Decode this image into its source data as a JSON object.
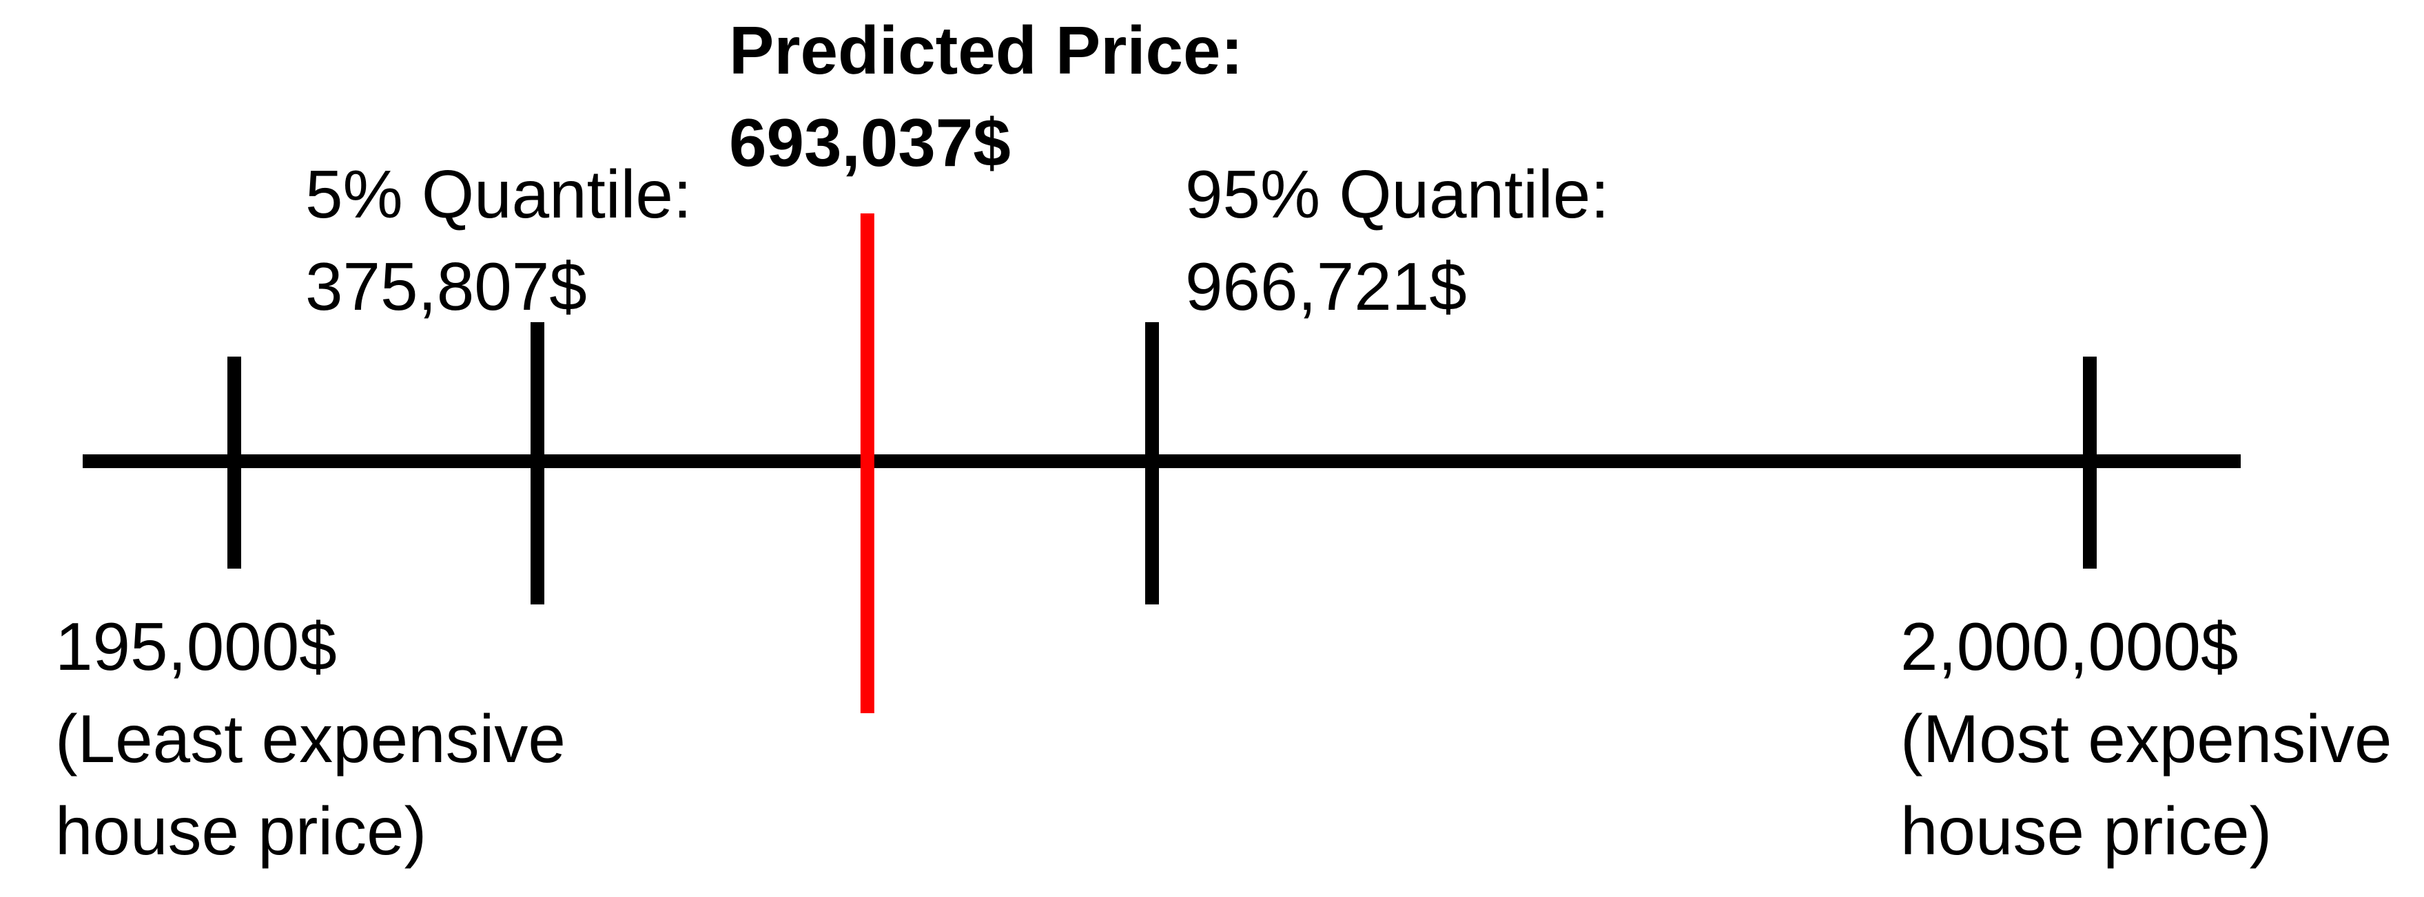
{
  "colors": {
    "axis": "#000000",
    "predicted_marker": "#ff0000"
  },
  "scale": {
    "min": {
      "value": 195000,
      "text": "195,000$",
      "note_lines": [
        "(Least expensive",
        "house price)"
      ]
    },
    "max": {
      "value": 2000000,
      "text": "2,000,000$",
      "note_lines": [
        "(Most expensive",
        "house price)"
      ]
    }
  },
  "markers": {
    "quantile_05": {
      "label": "5% Quantile:",
      "value": 375807,
      "text": "375,807$"
    },
    "predicted": {
      "label": "Predicted Price:",
      "value": 693037,
      "text": "693,037$"
    },
    "quantile_95": {
      "label": "95% Quantile:",
      "value": 966721,
      "text": "966,721$"
    }
  }
}
